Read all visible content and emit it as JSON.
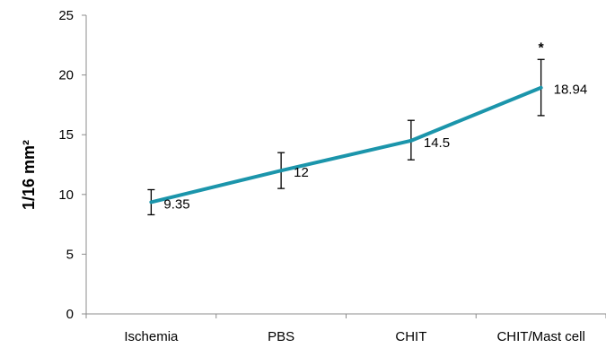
{
  "chart_data": {
    "type": "line",
    "title": "",
    "xlabel": "",
    "ylabel": "1/16 mm²",
    "ylim": [
      0,
      25
    ],
    "yticks": [
      0,
      5,
      10,
      15,
      20,
      25
    ],
    "grid": false,
    "categories": [
      "Ischemia",
      "PBS",
      "CHIT",
      "CHIT/Mast cell"
    ],
    "series": [
      {
        "values": [
          9.35,
          12,
          14.5,
          18.94
        ],
        "error_low": [
          8.3,
          10.5,
          12.9,
          16.6
        ],
        "error_high": [
          10.4,
          13.5,
          16.2,
          21.3
        ],
        "data_labels": [
          "9.35",
          "12",
          "14.5",
          "18.94"
        ],
        "color": "#1b95ab"
      }
    ],
    "annotations": [
      {
        "category_index": 3,
        "text": "*"
      }
    ]
  }
}
